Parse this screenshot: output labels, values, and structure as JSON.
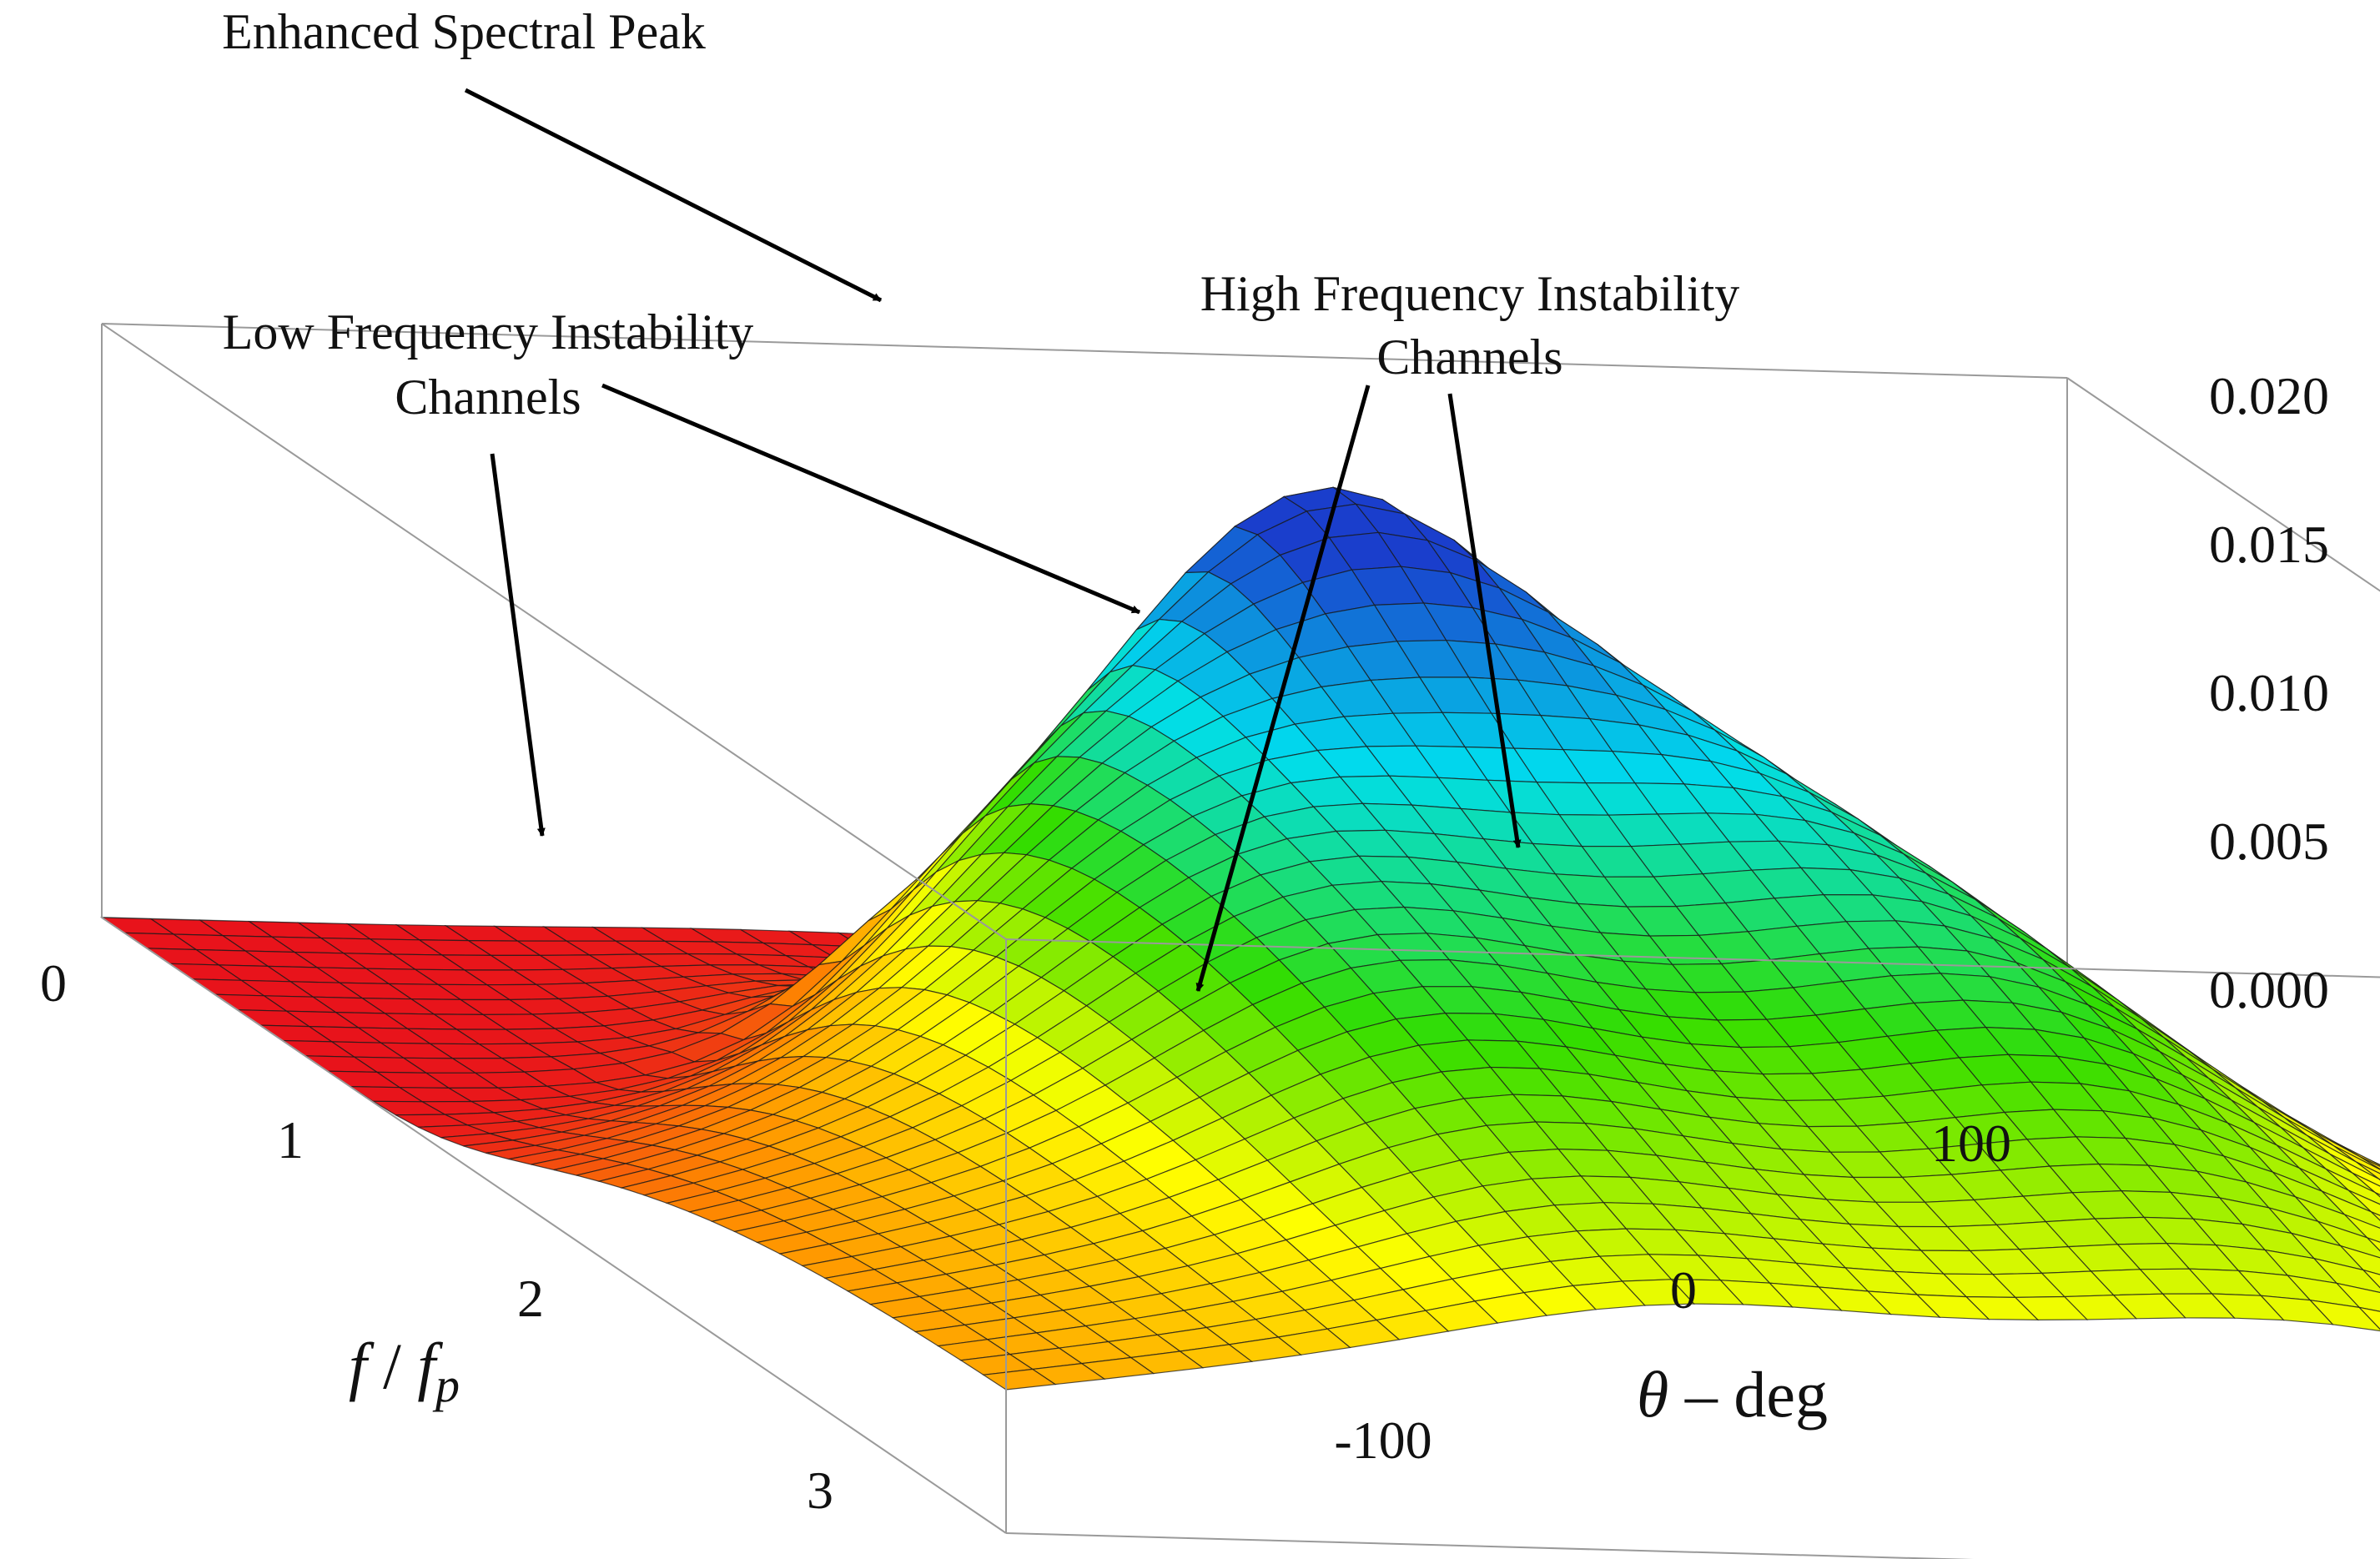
{
  "chart_data": {
    "type": "surface3d",
    "title": "",
    "xlabel_parts": [
      "f",
      " / ",
      "f",
      "p"
    ],
    "ylabel_parts": [
      "θ",
      " – deg"
    ],
    "zlabel": "",
    "x_axis": {
      "name": "f / fp",
      "range": [
        0,
        3.6
      ],
      "ticks": [
        "0",
        "1",
        "2",
        "3"
      ],
      "tick_values": [
        0,
        1,
        2,
        3
      ]
    },
    "y_axis": {
      "name": "θ - deg",
      "range": [
        -180,
        180
      ],
      "ticks": [
        "-100",
        "0",
        "100"
      ],
      "tick_values": [
        -100,
        0,
        100
      ]
    },
    "z_axis": {
      "range": [
        0,
        0.02
      ],
      "ticks": [
        "0.000",
        "0.005",
        "0.010",
        "0.015",
        "0.020"
      ],
      "tick_values": [
        0,
        0.005,
        0.01,
        0.015,
        0.02
      ]
    },
    "surface_features": [
      {
        "name": "main peak",
        "f": 1.0,
        "theta": 0,
        "value": 0.0205
      },
      {
        "name": "low frequency instability channel",
        "f": 0.85,
        "theta": 75,
        "value": 0.0015
      },
      {
        "name": "low frequency instability channel",
        "f": 0.85,
        "theta": -75,
        "value": 0.0015
      },
      {
        "name": "high frequency instability channel",
        "f": 2.2,
        "theta": 60,
        "value": 0.0035
      },
      {
        "name": "high frequency instability channel",
        "f": 2.2,
        "theta": -60,
        "value": 0.0035
      }
    ],
    "colormap": [
      "#e8131b",
      "#ff8c00",
      "#ffff00",
      "#33dd00",
      "#00ddee",
      "#1a3ecc"
    ],
    "annotations": [
      {
        "id": "enhanced",
        "lines": [
          "Enhanced Spectral Peak"
        ]
      },
      {
        "id": "low",
        "lines": [
          "Low Frequency Instability",
          "Channels"
        ]
      },
      {
        "id": "high",
        "lines": [
          "High Frequency Instability",
          "Channels"
        ]
      }
    ]
  }
}
